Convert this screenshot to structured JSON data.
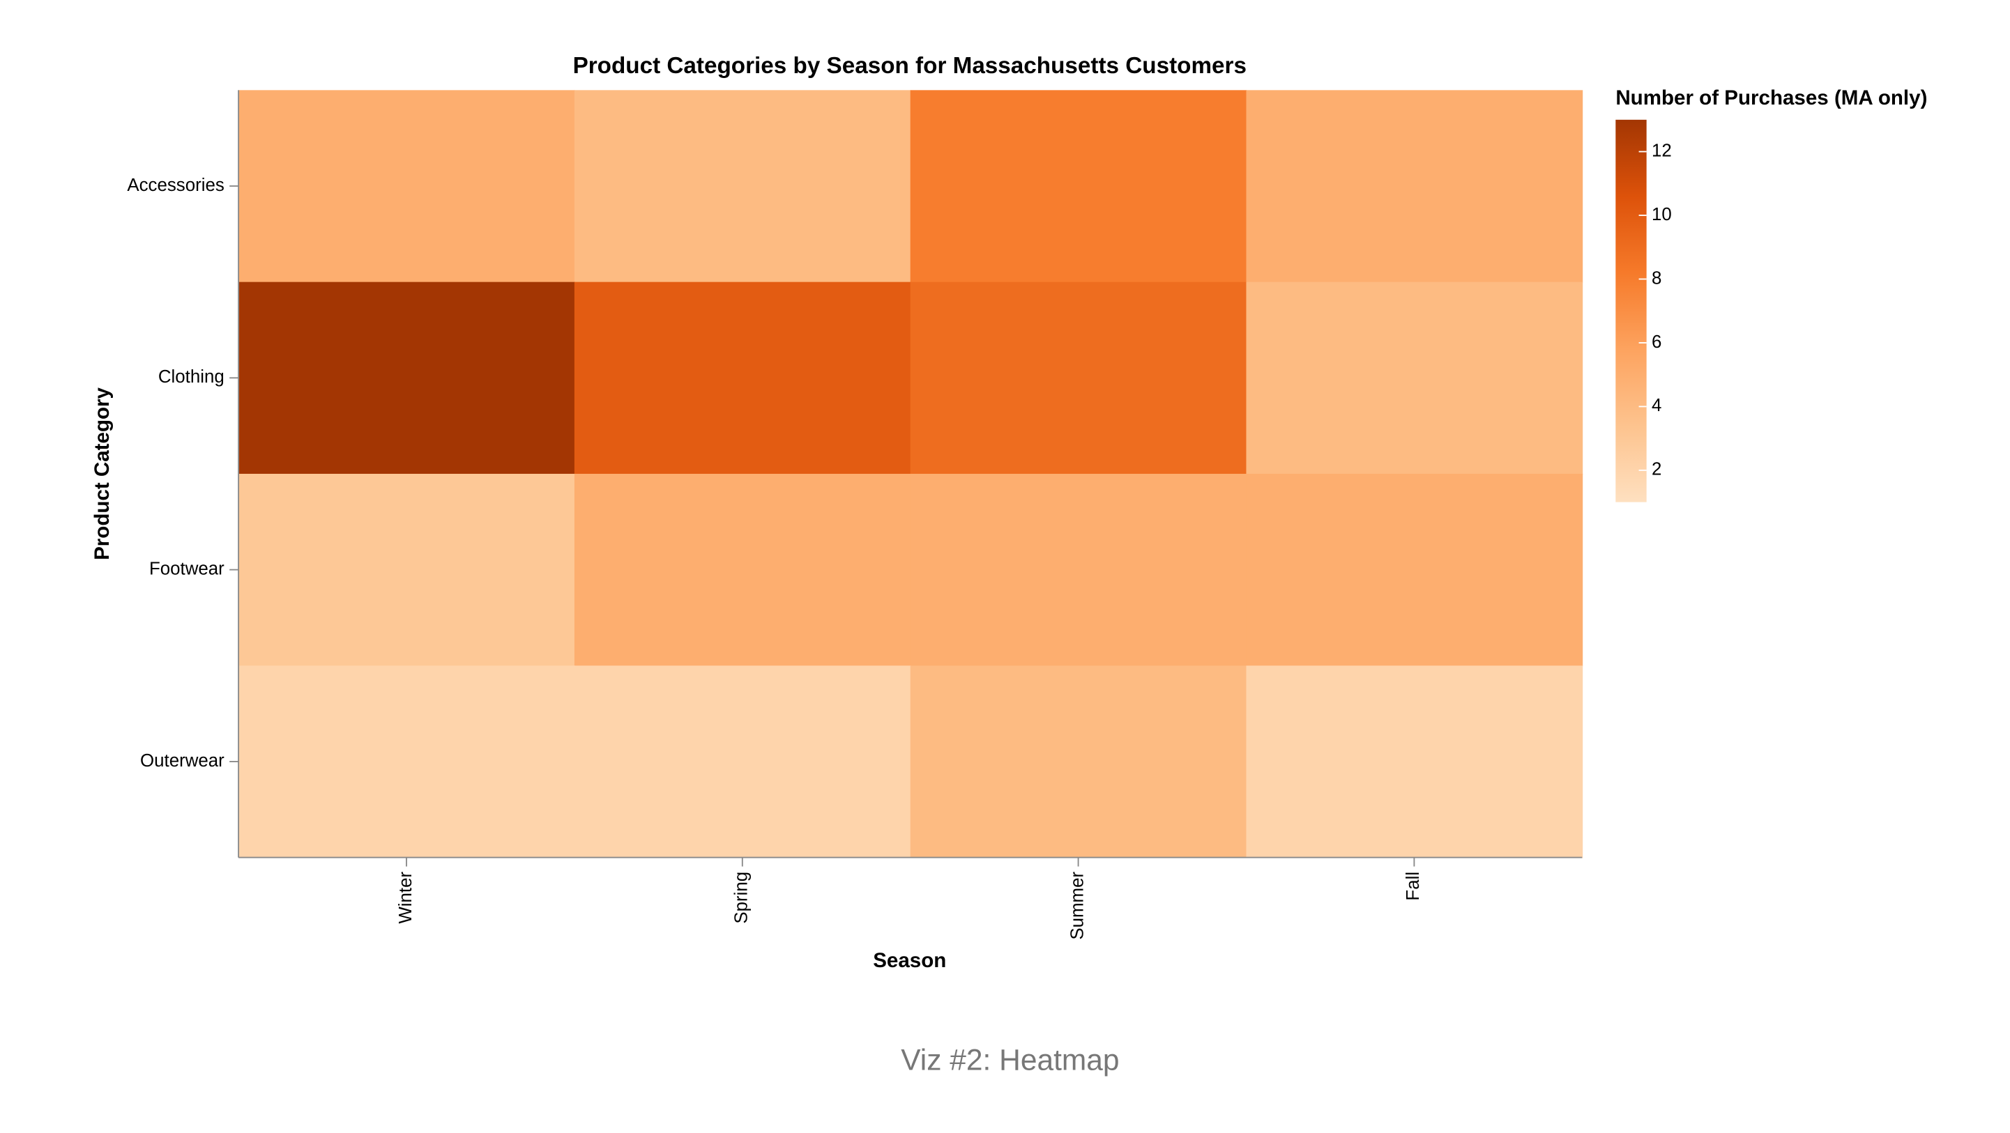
{
  "chart_data": {
    "type": "heatmap",
    "title": "Product Categories by Season for Massachusetts Customers",
    "x_label": "Season",
    "y_label": "Product Category",
    "categories": [
      "Winter",
      "Spring",
      "Summer",
      "Fall"
    ],
    "y_categories": [
      "Accessories",
      "Clothing",
      "Footwear",
      "Outerwear"
    ],
    "values": [
      [
        5,
        4,
        8,
        5
      ],
      [
        13,
        10,
        9,
        4
      ],
      [
        3,
        5,
        5,
        5
      ],
      [
        2,
        2,
        4,
        2
      ]
    ],
    "legend_title": "Number of Purchases (MA only)",
    "color_range": [
      1,
      13
    ],
    "color_ticks": [
      2,
      4,
      6,
      8,
      10,
      12
    ],
    "colors": [
      "#fee0c0",
      "#fdc38e",
      "#fda35f",
      "#f67a2a",
      "#dd520a",
      "#a33603"
    ],
    "caption": "Viz #2: Heatmap"
  }
}
